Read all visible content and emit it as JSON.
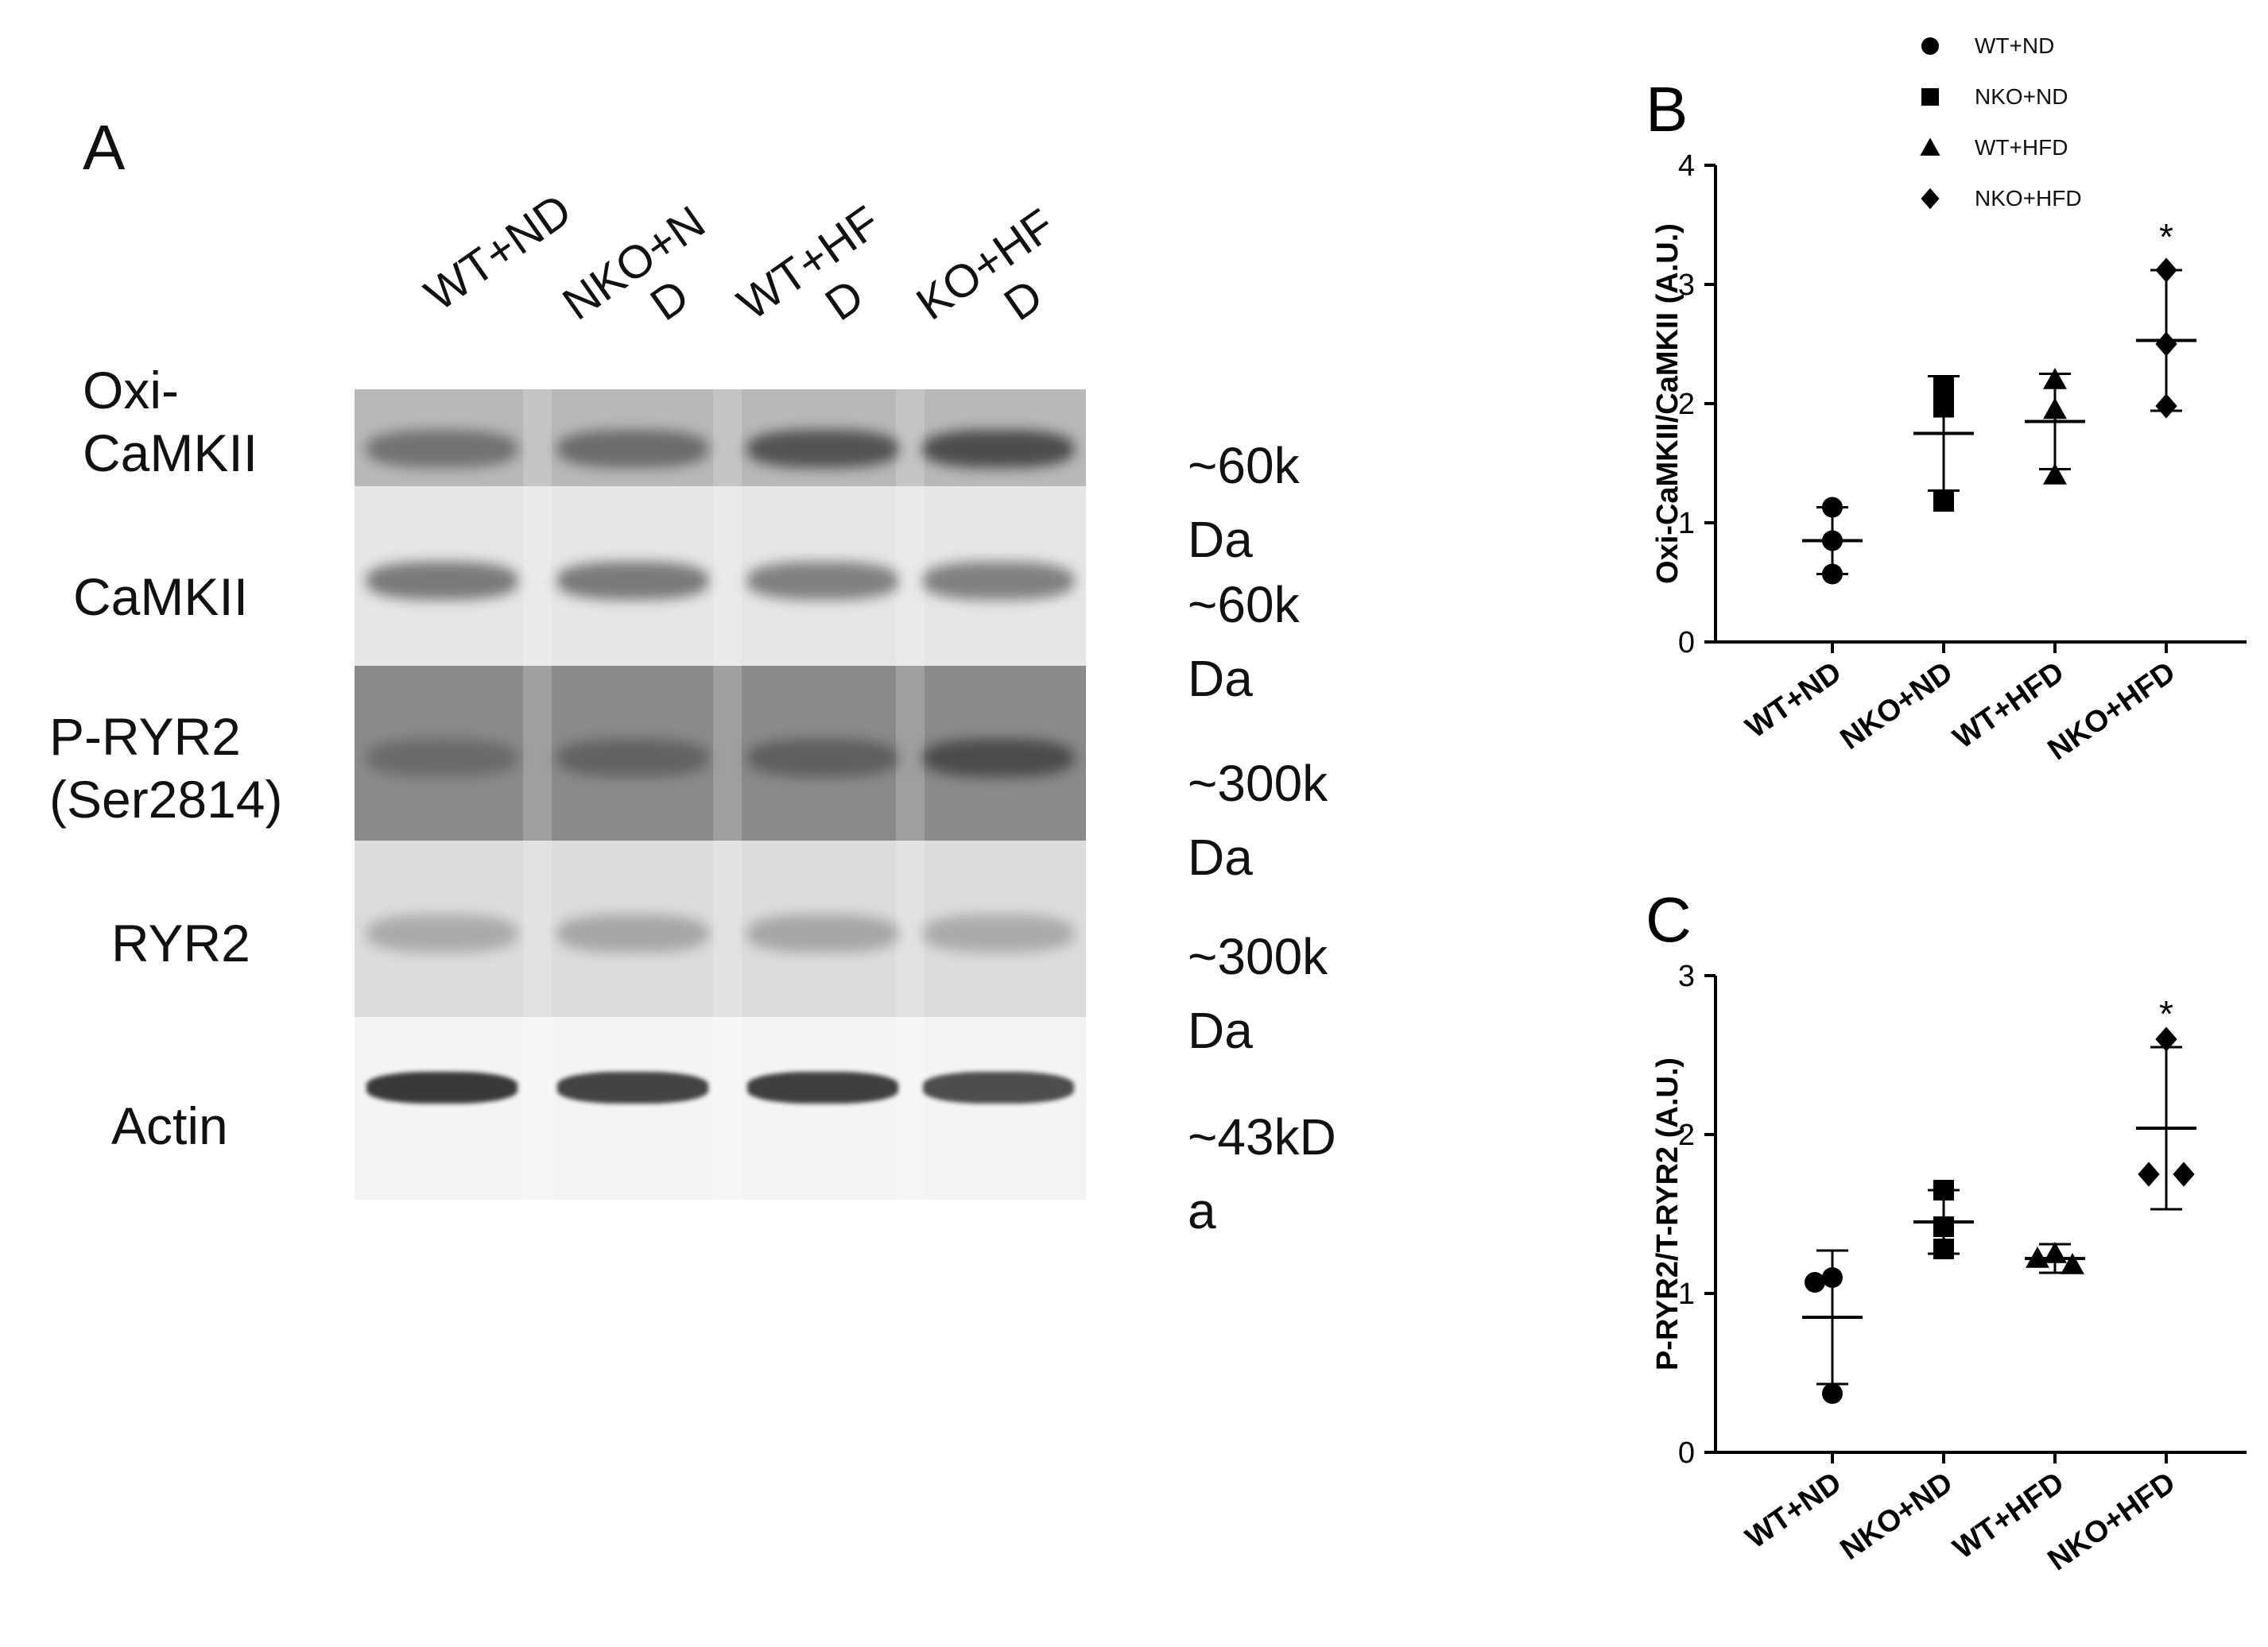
{
  "panelA": {
    "letter": "A",
    "lanes": [
      {
        "line1": "WT+ND",
        "line2": ""
      },
      {
        "line1": "NKO+N",
        "line2": "D"
      },
      {
        "line1": "WT+HF",
        "line2": "D"
      },
      {
        "line1": "KO+HF",
        "line2": "D"
      }
    ],
    "blots": [
      {
        "label": "Oxi-\nCaMKII",
        "mw": "~60k\nDa",
        "bg": "#b8b8b8",
        "band": "#3a3a3a"
      },
      {
        "label": "CaMKII",
        "mw": "~60k\nDa",
        "bg": "#e6e6e6",
        "band": "#555555"
      },
      {
        "label": "P-RYR2\n(Ser2814)",
        "mw": "~300k\nDa",
        "bg": "#8a8a8a",
        "band": "#3c3c3c"
      },
      {
        "label": "RYR2",
        "mw": "~300k\nDa",
        "bg": "#dcdcdc",
        "band": "#8a8a8a"
      },
      {
        "label": "Actin",
        "mw": "~43kD\na",
        "bg": "#f4f4f4",
        "band": "#303030"
      }
    ],
    "band_intensity": [
      [
        0.55,
        0.6,
        0.8,
        0.85
      ],
      [
        0.75,
        0.75,
        0.7,
        0.7
      ],
      [
        0.4,
        0.5,
        0.55,
        0.8
      ],
      [
        0.6,
        0.65,
        0.65,
        0.6
      ],
      [
        0.95,
        0.9,
        0.92,
        0.85
      ]
    ]
  },
  "legend": [
    {
      "label": "WT+ND",
      "marker": "circle"
    },
    {
      "label": "NKO+ND",
      "marker": "square"
    },
    {
      "label": "WT+HFD",
      "marker": "triangle"
    },
    {
      "label": "NKO+HFD",
      "marker": "diamond"
    }
  ],
  "chart_data": [
    {
      "panel": "B",
      "type": "scatter",
      "ylabel": "Oxi-CaMKII/CaMKII (A.U.)",
      "ylim": [
        0,
        4
      ],
      "yticks": [
        "0",
        "1",
        "2",
        "3",
        "4"
      ],
      "categories": [
        "WT+ND",
        "NKO+ND",
        "WT+HFD",
        "NKO+HFD"
      ],
      "markers": [
        "circle",
        "square",
        "triangle",
        "diamond"
      ],
      "points": [
        [
          1.13,
          0.85,
          0.57
        ],
        [
          2.14,
          1.97,
          1.18
        ],
        [
          2.2,
          1.95,
          1.4
        ],
        [
          3.12,
          2.5,
          1.98
        ]
      ],
      "mean": [
        0.85,
        1.75,
        1.85,
        2.53
      ],
      "sd": [
        0.28,
        0.48,
        0.4,
        0.59
      ],
      "annotations": [
        "",
        "",
        "",
        "*"
      ]
    },
    {
      "panel": "C",
      "type": "scatter",
      "ylabel": "P-RYR2/T-RYR2 (A.U.)",
      "ylim": [
        0,
        3
      ],
      "yticks": [
        "0",
        "1",
        "2",
        "3"
      ],
      "categories": [
        "WT+ND",
        "NKO+ND",
        "WT+HFD",
        "NKO+HFD"
      ],
      "markers": [
        "circle",
        "square",
        "triangle",
        "diamond"
      ],
      "points": [
        [
          1.1,
          1.07,
          0.37
        ],
        [
          1.65,
          1.42,
          1.28
        ],
        [
          1.25,
          1.22,
          1.18
        ],
        [
          2.6,
          1.75,
          1.75
        ]
      ],
      "mean": [
        0.85,
        1.45,
        1.22,
        2.04
      ],
      "sd": [
        0.42,
        0.2,
        0.09,
        0.51
      ],
      "annotations": [
        "",
        "",
        "",
        "*"
      ]
    }
  ]
}
